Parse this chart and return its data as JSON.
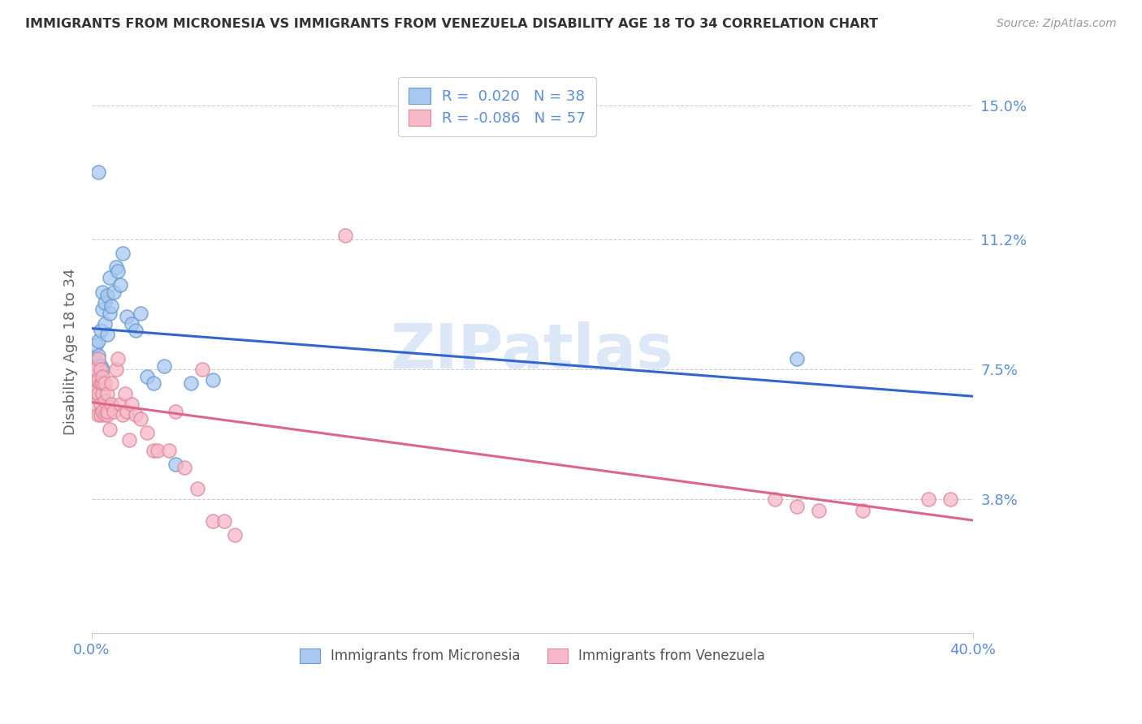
{
  "title": "IMMIGRANTS FROM MICRONESIA VS IMMIGRANTS FROM VENEZUELA DISABILITY AGE 18 TO 34 CORRELATION CHART",
  "source": "Source: ZipAtlas.com",
  "ylabel": "Disability Age 18 to 34",
  "xmin": 0.0,
  "xmax": 0.4,
  "ymin": 0.0,
  "ymax": 0.16,
  "yticks": [
    0.038,
    0.075,
    0.112,
    0.15
  ],
  "ytick_labels": [
    "3.8%",
    "7.5%",
    "11.2%",
    "15.0%"
  ],
  "xticks": [
    0.0,
    0.4
  ],
  "xtick_labels": [
    "0.0%",
    "40.0%"
  ],
  "legend_line1": "R =  0.020   N = 38",
  "legend_line2": "R = -0.086   N = 57",
  "label_micronesia": "Immigrants from Micronesia",
  "label_venezuela": "Immigrants from Venezuela",
  "color_micronesia_fill": "#a8c8f0",
  "color_micronesia_edge": "#6699cc",
  "color_venezuela_fill": "#f8b8c8",
  "color_venezuela_edge": "#dd8899",
  "color_micronesia_line": "#3366cc",
  "color_venezuela_line": "#dd6688",
  "color_axis_labels": "#5b8dd9",
  "color_title": "#333333",
  "color_source": "#999999",
  "color_watermark": "#dce8f8",
  "watermark": "ZIPatlas",
  "micronesia_x": [
    0.001,
    0.001,
    0.002,
    0.002,
    0.002,
    0.002,
    0.003,
    0.003,
    0.003,
    0.004,
    0.004,
    0.005,
    0.005,
    0.005,
    0.006,
    0.006,
    0.007,
    0.007,
    0.008,
    0.008,
    0.009,
    0.01,
    0.011,
    0.012,
    0.013,
    0.014,
    0.016,
    0.018,
    0.02,
    0.022,
    0.025,
    0.028,
    0.033,
    0.038,
    0.045,
    0.055,
    0.32,
    0.003
  ],
  "micronesia_y": [
    0.075,
    0.078,
    0.073,
    0.077,
    0.082,
    0.076,
    0.071,
    0.079,
    0.083,
    0.076,
    0.086,
    0.092,
    0.097,
    0.075,
    0.088,
    0.094,
    0.085,
    0.096,
    0.091,
    0.101,
    0.093,
    0.097,
    0.104,
    0.103,
    0.099,
    0.108,
    0.09,
    0.088,
    0.086,
    0.091,
    0.073,
    0.071,
    0.076,
    0.048,
    0.071,
    0.072,
    0.078,
    0.131
  ],
  "venezuela_x": [
    0.001,
    0.001,
    0.001,
    0.002,
    0.002,
    0.002,
    0.002,
    0.003,
    0.003,
    0.003,
    0.003,
    0.004,
    0.004,
    0.004,
    0.004,
    0.005,
    0.005,
    0.005,
    0.005,
    0.006,
    0.006,
    0.006,
    0.007,
    0.007,
    0.007,
    0.008,
    0.009,
    0.009,
    0.01,
    0.011,
    0.012,
    0.013,
    0.014,
    0.015,
    0.016,
    0.017,
    0.018,
    0.02,
    0.022,
    0.025,
    0.028,
    0.03,
    0.035,
    0.038,
    0.042,
    0.048,
    0.055,
    0.115,
    0.31,
    0.32,
    0.33,
    0.35,
    0.38,
    0.39,
    0.05,
    0.06,
    0.065
  ],
  "venezuela_y": [
    0.075,
    0.068,
    0.073,
    0.07,
    0.065,
    0.072,
    0.075,
    0.068,
    0.062,
    0.072,
    0.078,
    0.065,
    0.062,
    0.071,
    0.075,
    0.068,
    0.063,
    0.071,
    0.073,
    0.062,
    0.066,
    0.071,
    0.062,
    0.063,
    0.068,
    0.058,
    0.065,
    0.071,
    0.063,
    0.075,
    0.078,
    0.065,
    0.062,
    0.068,
    0.063,
    0.055,
    0.065,
    0.062,
    0.061,
    0.057,
    0.052,
    0.052,
    0.052,
    0.063,
    0.047,
    0.041,
    0.032,
    0.113,
    0.038,
    0.036,
    0.035,
    0.035,
    0.038,
    0.038,
    0.075,
    0.032,
    0.028
  ]
}
